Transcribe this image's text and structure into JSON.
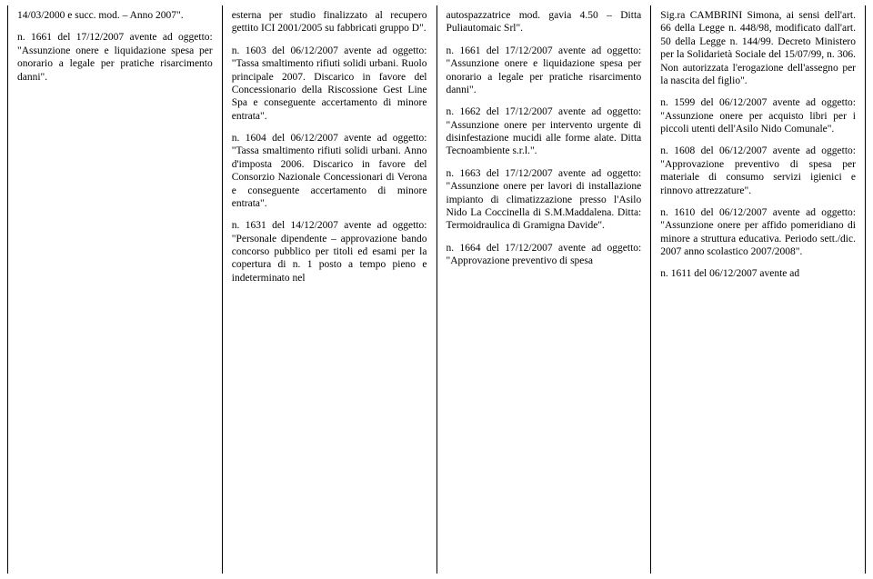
{
  "columns": [
    {
      "paragraphs": [
        "14/03/2000 e succ. mod. – Anno 2007\".",
        "n. 1661 del 17/12/2007 avente ad oggetto: \"Assunzione onere e liquidazione spesa per onorario a legale per pratiche risarcimento danni\"."
      ]
    },
    {
      "paragraphs": [
        "esterna per studio finalizzato al recupero gettito ICI 2001/2005 su fabbricati gruppo D\".",
        "n. 1603 del 06/12/2007 avente ad oggetto: \"Tassa smaltimento rifiuti solidi urbani. Ruolo principale 2007. Discarico in favore del Concessionario della Riscossione Gest Line Spa e conseguente accertamento di minore entrata\".",
        "n. 1604 del 06/12/2007 avente ad oggetto: \"Tassa smaltimento rifiuti solidi urbani. Anno d'imposta 2006. Discarico in favore del Consorzio Nazionale Concessionari di Verona e conseguente accertamento di minore entrata\".",
        "n. 1631 del 14/12/2007 avente ad oggetto: \"Personale dipendente – approvazione bando concorso pubblico per titoli ed esami per la copertura di n. 1 posto a tempo pieno e indeterminato nel"
      ]
    },
    {
      "paragraphs": [
        "autospazzatrice mod. gavia 4.50 – Ditta Puliautomaic Srl\".",
        "n. 1661 del 17/12/2007 avente ad oggetto: \"Assunzione onere e liquidazione spesa per onorario a legale per pratiche risarcimento danni\".",
        "n. 1662 del 17/12/2007 avente ad oggetto: \"Assunzione onere per intervento urgente di disinfestazione mucidi alle forme alate. Ditta Tecnoambiente s.r.l.\".",
        "n. 1663 del 17/12/2007 avente ad oggetto: \"Assunzione onere per lavori di installazione impianto di climatizzazione presso l'Asilo Nido La Coccinella di S.M.Maddalena. Ditta: Termoidraulica di Gramigna Davide\".",
        "n. 1664 del 17/12/2007 avente ad oggetto: \"Approvazione preventivo di spesa"
      ]
    },
    {
      "paragraphs": [
        "Sig.ra CAMBRINI Simona, ai sensi dell'art. 66 della Legge n. 448/98, modificato dall'art. 50 della Legge n. 144/99. Decreto Ministero per la Solidarietà Sociale del 15/07/99, n. 306. Non autorizzata l'erogazione dell'assegno per la nascita del figlio\".",
        "n. 1599 del 06/12/2007 avente ad oggetto: \"Assunzione onere per acquisto libri per i piccoli utenti dell'Asilo Nido Comunale\".",
        "n. 1608 del 06/12/2007 avente ad oggetto: \"Approvazione preventivo di spesa per materiale di consumo servizi igienici e rinnovo attrezzature\".",
        "n. 1610 del 06/12/2007 avente ad oggetto: \"Assunzione onere per affido pomeridiano di minore a struttura educativa. Periodo sett./dic. 2007 anno scolastico 2007/2008\".",
        "n. 1611 del 06/12/2007 avente ad"
      ]
    }
  ]
}
